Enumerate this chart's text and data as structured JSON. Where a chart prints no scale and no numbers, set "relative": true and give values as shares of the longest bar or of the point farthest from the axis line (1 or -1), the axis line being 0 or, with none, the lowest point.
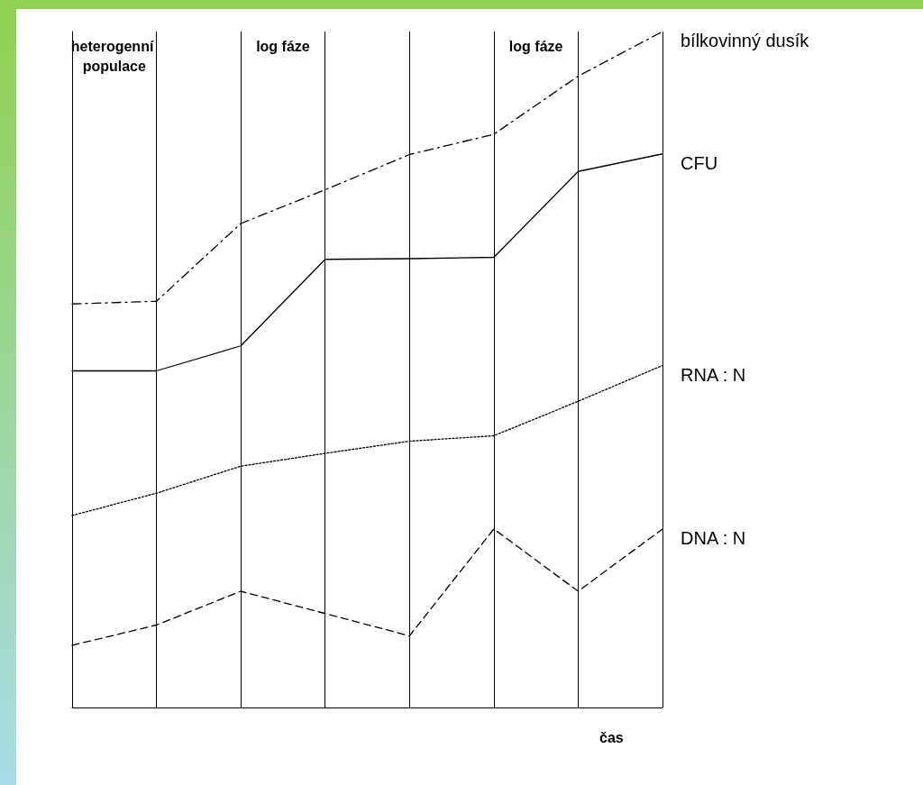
{
  "chart_data": {
    "type": "line",
    "relative": true,
    "xlabel": "čas",
    "categories": [
      null,
      null,
      null,
      null,
      null,
      null,
      null,
      null
    ],
    "grid": "x",
    "legend": false,
    "marker": "none",
    "series": [
      {
        "name": "bílkovinný dusík",
        "color": "#000000",
        "line_style": "dashdot",
        "values": [
          0.597,
          0.601,
          0.716,
          0.766,
          0.818,
          0.848,
          0.934,
          1.0
        ]
      },
      {
        "name": "CFU",
        "color": "#000000",
        "line_style": "solid",
        "values": [
          0.498,
          0.498,
          0.535,
          0.663,
          0.664,
          0.666,
          0.793,
          0.819
        ]
      },
      {
        "name": "RNA : N",
        "color": "#000000",
        "line_style": "dotted",
        "values": [
          0.284,
          0.317,
          0.357,
          0.376,
          0.394,
          0.402,
          0.453,
          0.506
        ]
      },
      {
        "name": "DNA : N",
        "color": "#000000",
        "line_style": "dashed",
        "values": [
          0.092,
          0.122,
          0.172,
          0.139,
          0.106,
          0.264,
          0.172,
          0.264
        ]
      }
    ],
    "annotations": [
      "heterogenní populace",
      "log fáze",
      "log fáze"
    ]
  }
}
